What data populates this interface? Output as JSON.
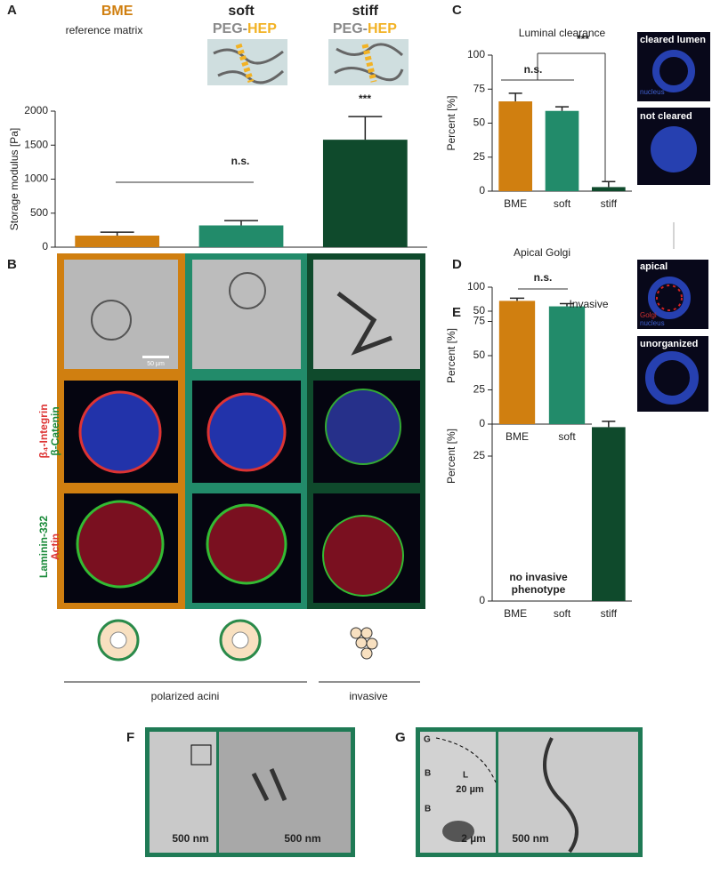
{
  "chart_data": [
    {
      "type": "bar",
      "y_label": "Storage modulus [Pa]",
      "categories": [
        "BME",
        "soft",
        "stiff"
      ],
      "values": [
        170,
        320,
        1580
      ],
      "errors": [
        50,
        70,
        340
      ],
      "colors": [
        "#d07f10",
        "#228b6a",
        "#0f4a2c"
      ],
      "ylim": [
        0,
        2000
      ],
      "yticks": [
        0,
        500,
        1000,
        1500,
        2000
      ],
      "annotations": [
        "n.s.",
        "***"
      ]
    },
    {
      "type": "bar",
      "title": "Luminal clearance",
      "y_label": "Percent [%]",
      "categories": [
        "BME",
        "soft",
        "stiff"
      ],
      "values": [
        66,
        59,
        3
      ],
      "errors": [
        6,
        3,
        4
      ],
      "colors": [
        "#d07f10",
        "#228b6a",
        "#0f4a2c"
      ],
      "ylim": [
        0,
        100
      ],
      "yticks": [
        0,
        25,
        50,
        75,
        100
      ],
      "annotations": [
        "n.s.",
        "***"
      ]
    },
    {
      "type": "bar",
      "title": "Apical Golgi",
      "y_label": "Percent [%]",
      "categories": [
        "BME",
        "soft"
      ],
      "values": [
        90,
        86
      ],
      "errors": [
        2,
        2
      ],
      "colors": [
        "#d07f10",
        "#228b6a"
      ],
      "ylim": [
        0,
        100
      ],
      "yticks": [
        0,
        25,
        50,
        75,
        100
      ],
      "annotations": [
        "n.s."
      ]
    },
    {
      "type": "bar",
      "title": "Invasive",
      "y_label": "Percent [%]",
      "categories": [
        "BME",
        "soft",
        "stiff"
      ],
      "values": [
        0,
        0,
        30
      ],
      "errors": [
        0,
        0,
        1
      ],
      "colors": [
        "#d07f10",
        "#228b6a",
        "#0f4a2c"
      ],
      "ylim": [
        0,
        50
      ],
      "yticks": [
        0,
        25,
        50
      ],
      "annotations": [
        "no invasive",
        "phenotype"
      ]
    }
  ],
  "figure": {
    "panel_labels": [
      "A",
      "B",
      "C",
      "D",
      "E",
      "F",
      "G"
    ],
    "bme_subtitle": "reference matrix",
    "gel": [
      "PEG-",
      "HEP"
    ],
    "stains": [
      "β₄-Integrin",
      "β-Catenin",
      "Laminin-332",
      "Actin"
    ],
    "scale_bar": "50 µm",
    "groups": [
      "polarized acini",
      "invasive"
    ],
    "micrograph_labels_c": [
      "cleared lumen",
      "nucleus",
      "not cleared"
    ],
    "micrograph_labels_d": [
      "apical",
      "Golgi",
      "nucleus",
      "unorganized"
    ],
    "em_f": [
      "500 nm",
      "500 nm"
    ],
    "em_g": [
      "G",
      "B",
      "L",
      "20 µm",
      "B",
      "2 µm",
      "500 nm"
    ]
  }
}
